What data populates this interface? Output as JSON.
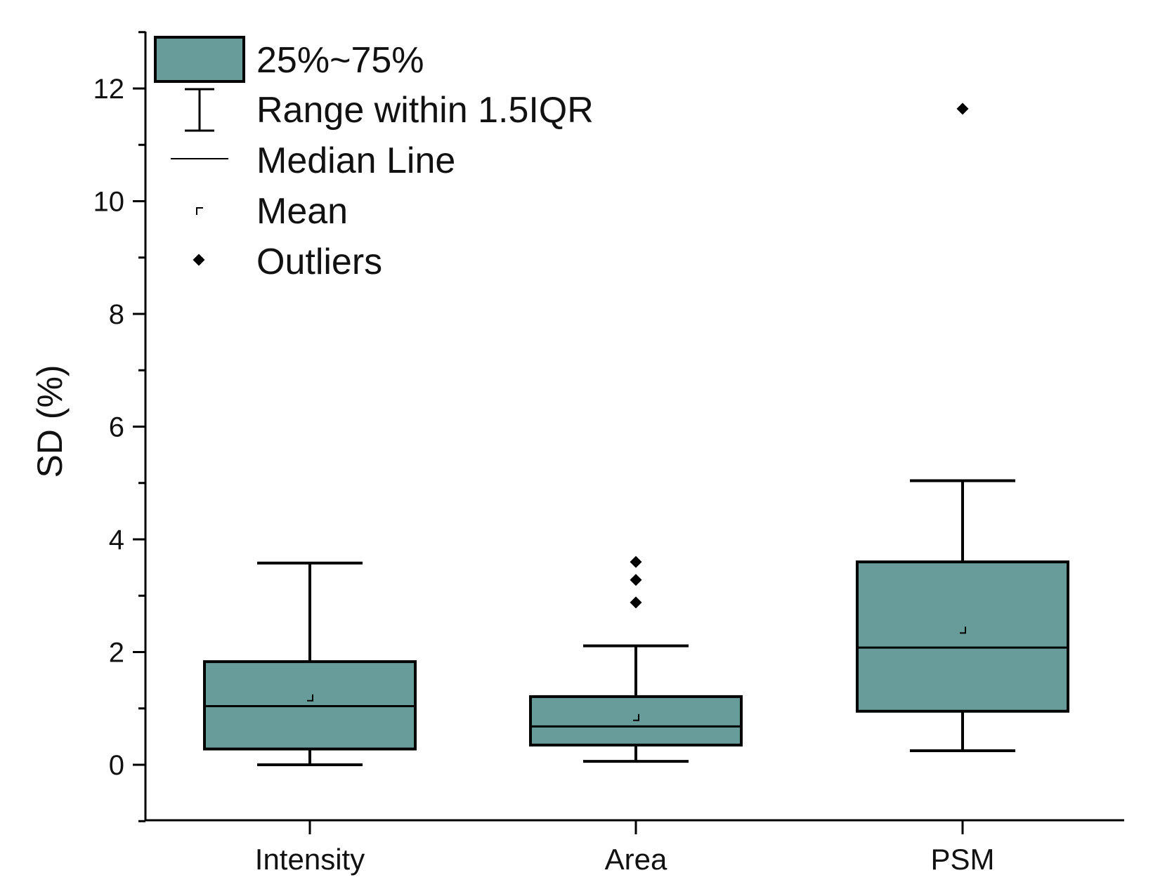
{
  "chart_data": {
    "type": "boxplot",
    "title": "",
    "xlabel": "",
    "ylabel": "SD (%)",
    "ylim": [
      -1,
      13
    ],
    "yticks": [
      0,
      2,
      4,
      6,
      8,
      10,
      12
    ],
    "categories": [
      "Intensity",
      "Area",
      "PSM"
    ],
    "box_color": "#679c9a",
    "boxes": [
      {
        "name": "Intensity",
        "whisker_low": 0.0,
        "q1": 0.28,
        "median": 1.04,
        "q3": 1.83,
        "whisker_high": 3.58,
        "mean": 1.2,
        "outliers": []
      },
      {
        "name": "Area",
        "whisker_low": 0.06,
        "q1": 0.35,
        "median": 0.68,
        "q3": 1.21,
        "whisker_high": 2.11,
        "mean": 0.85,
        "outliers": [
          2.88,
          3.28,
          3.6
        ]
      },
      {
        "name": "PSM",
        "whisker_low": 0.25,
        "q1": 0.95,
        "median": 2.08,
        "q3": 3.6,
        "whisker_high": 5.04,
        "mean": 2.4,
        "outliers": [
          11.64
        ]
      }
    ],
    "legend": {
      "position": "top-left",
      "items": [
        "25%~75%",
        "Range within 1.5IQR",
        "Median Line",
        "Mean",
        "Outliers"
      ]
    }
  }
}
